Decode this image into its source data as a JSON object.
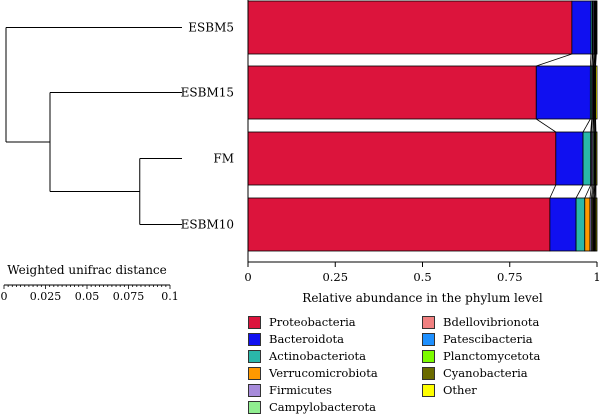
{
  "chart_data": {
    "type": "bar",
    "orientation": "horizontal",
    "stacked": true,
    "samples": [
      "ESBM5",
      "ESBM15",
      "FM",
      "ESBM10"
    ],
    "xlabel": "Relative abundance in the phylum level",
    "xlim": [
      0,
      1
    ],
    "xticks": [
      "0",
      "0.25",
      "0.5",
      "0.75",
      "1"
    ],
    "series": [
      {
        "name": "Proteobacteria",
        "color": "#DC143C",
        "values": [
          0.928,
          0.826,
          0.882,
          0.865
        ]
      },
      {
        "name": "Bacteroidota",
        "color": "#1010F0",
        "values": [
          0.055,
          0.155,
          0.078,
          0.075
        ]
      },
      {
        "name": "Actinobacteriota",
        "color": "#2AB7A9",
        "values": [
          0.004,
          0.004,
          0.022,
          0.025
        ]
      },
      {
        "name": "Verrucomicrobiota",
        "color": "#FF9900",
        "values": [
          0.001,
          0.001,
          0.002,
          0.015
        ]
      },
      {
        "name": "Firmicutes",
        "color": "#A78BDB",
        "values": [
          0.003,
          0.003,
          0.004,
          0.004
        ]
      },
      {
        "name": "Campylobacterota",
        "color": "#90EE90",
        "values": [
          0.002,
          0.002,
          0.003,
          0.003
        ]
      },
      {
        "name": "Bdellovibrionota",
        "color": "#F08080",
        "values": [
          0.002,
          0.002,
          0.002,
          0.003
        ]
      },
      {
        "name": "Patescibacteria",
        "color": "#1E90FF",
        "values": [
          0.001,
          0.001,
          0.002,
          0.002
        ]
      },
      {
        "name": "Planctomycetota",
        "color": "#7CFC00",
        "values": [
          0.001,
          0.001,
          0.001,
          0.002
        ]
      },
      {
        "name": "Cyanobacteria",
        "color": "#6B6B00",
        "values": [
          0.001,
          0.001,
          0.001,
          0.003
        ]
      },
      {
        "name": "Other",
        "color": "#FFFF00",
        "values": [
          0.002,
          0.004,
          0.003,
          0.003
        ]
      }
    ]
  },
  "dendrogram": {
    "leaves": [
      "ESBM5",
      "ESBM15",
      "FM",
      "ESBM10"
    ],
    "scale_title": "Weighted unifrac distance",
    "scale_ticks": [
      "0",
      "0.025",
      "0.05",
      "0.075",
      "0.1"
    ],
    "merges": [
      {
        "leaves": [
          "FM",
          "ESBM10"
        ],
        "height": 0.024
      },
      {
        "leaves": [
          "ESBM15",
          "FM",
          "ESBM10"
        ],
        "height": 0.075
      },
      {
        "leaves": [
          "ESBM5",
          "ESBM15",
          "FM",
          "ESBM10"
        ],
        "height": 0.1
      }
    ]
  },
  "legend": {
    "columns": [
      [
        "Proteobacteria",
        "Bacteroidota",
        "Actinobacteriota",
        "Verrucomicrobiota",
        "Firmicutes",
        "Campylobacterota"
      ],
      [
        "Bdellovibrionota",
        "Patescibacteria",
        "Planctomycetota",
        "Cyanobacteria",
        "Other"
      ]
    ]
  }
}
